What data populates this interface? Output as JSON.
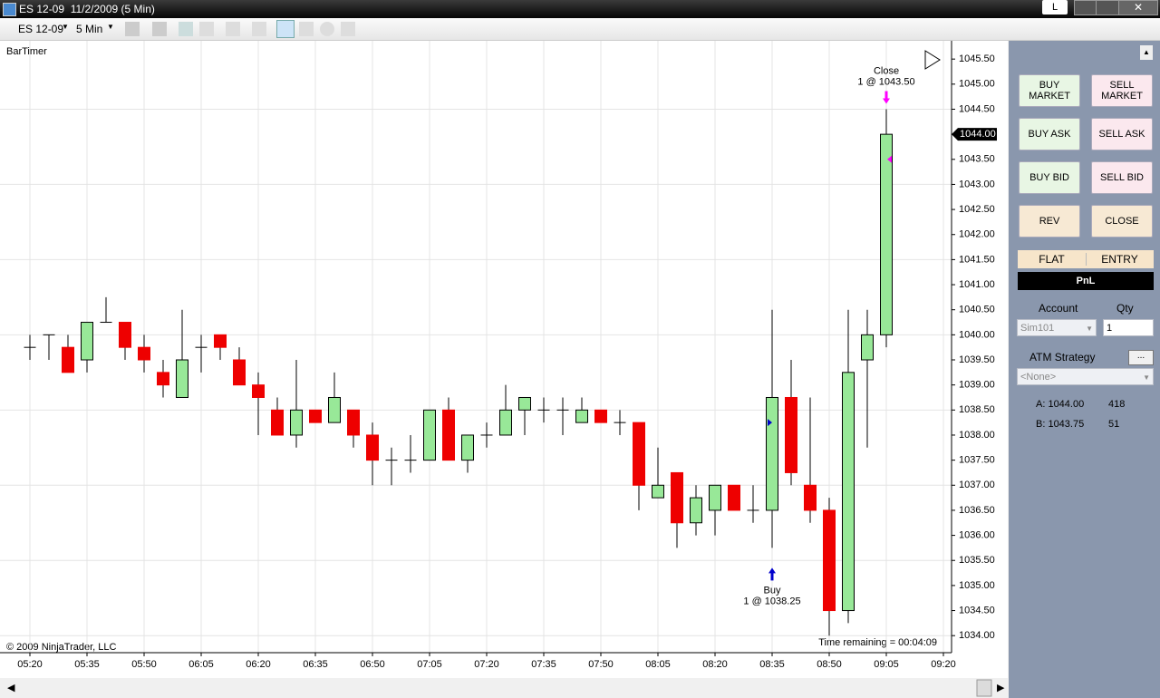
{
  "window": {
    "title": "ES 12-09  11/2/2009 (5 Min)",
    "user_button": "L"
  },
  "toolbar": {
    "instrument": "ES 12-09",
    "interval": "5 Min"
  },
  "chart_data": {
    "type": "candlestick",
    "indicator": "BarTimer",
    "copyright": "© 2009 NinjaTrader, LLC",
    "timer": "Time remaining = 00:04:09",
    "xticks": [
      "05:20",
      "05:35",
      "05:50",
      "06:05",
      "06:20",
      "06:35",
      "06:50",
      "07:05",
      "07:20",
      "07:35",
      "07:50",
      "08:05",
      "08:20",
      "08:35",
      "08:50",
      "09:05",
      "09:20"
    ],
    "ylim": [
      1033.66,
      1045.72
    ],
    "yticks": [
      {
        "value": 1045.5,
        "label": "1045.50"
      },
      {
        "value": 1045,
        "label": "1045.00"
      },
      {
        "value": 1044.5,
        "label": "1044.50"
      },
      {
        "value": 1044,
        "label": "1044.00"
      },
      {
        "value": 1043.5,
        "label": "1043.50"
      },
      {
        "value": 1043,
        "label": "1043.00"
      },
      {
        "value": 1042.5,
        "label": "1042.50"
      },
      {
        "value": 1042,
        "label": "1042.00"
      },
      {
        "value": 1041.5,
        "label": "1041.50"
      },
      {
        "value": 1041,
        "label": "1041.00"
      },
      {
        "value": 1040.5,
        "label": "1040.50"
      },
      {
        "value": 1040,
        "label": "1040.00"
      },
      {
        "value": 1039.5,
        "label": "1039.50"
      },
      {
        "value": 1039,
        "label": "1039.00"
      },
      {
        "value": 1038.5,
        "label": "1038.50"
      },
      {
        "value": 1038,
        "label": "1038.00"
      },
      {
        "value": 1037.5,
        "label": "1037.50"
      },
      {
        "value": 1037,
        "label": "1037.00"
      },
      {
        "value": 1036.5,
        "label": "1036.50"
      },
      {
        "value": 1036,
        "label": "1036.00"
      },
      {
        "value": 1035.5,
        "label": "1035.50"
      },
      {
        "value": 1035,
        "label": "1035.00"
      },
      {
        "value": 1034.5,
        "label": "1034.50"
      },
      {
        "value": 1034,
        "label": "1034.00"
      }
    ],
    "grid": true,
    "up_color": "#98e898",
    "down_color": "#ee0000",
    "open": [
      1039.75,
      1040,
      1039.75,
      1039.5,
      1040.25,
      1040.25,
      1039.75,
      1039.25,
      1038.75,
      1039.75,
      1040,
      1039.5,
      1039,
      1038.5,
      1038,
      1038.5,
      1038.25,
      1038.5,
      1038,
      1037.5,
      1037.5,
      1037.5,
      1038.5,
      1037.5,
      1038,
      1038,
      1038.5,
      1038.5,
      1038.5,
      1038.25,
      1038.5,
      1038.25,
      1038.25,
      1036.75,
      1037.25,
      1036.25,
      1036.5,
      1037,
      1036.5,
      1036.5,
      1038.75,
      1037,
      1036.5,
      1034.5,
      1039.5,
      1040
    ],
    "high": [
      1040,
      1040,
      1040,
      1040.25,
      1040.75,
      1040.25,
      1040,
      1039.5,
      1040.5,
      1040,
      1040,
      1039.75,
      1039.25,
      1038.75,
      1039.5,
      1038.5,
      1039.25,
      1038.5,
      1038.25,
      1037.75,
      1038,
      1038.5,
      1038.75,
      1038,
      1038.25,
      1039,
      1038.75,
      1038.75,
      1038.75,
      1038.75,
      1038.5,
      1038.5,
      1038.25,
      1037.75,
      1037.25,
      1037,
      1037,
      1037,
      1037,
      1040.5,
      1039.5,
      1038.75,
      1036.75,
      1040.5,
      1040.5,
      1044.5
    ],
    "low": [
      1039.5,
      1039.5,
      1039.25,
      1039.25,
      1040.25,
      1039.5,
      1039.25,
      1038.75,
      1038.75,
      1039.25,
      1039.5,
      1039,
      1038,
      1038,
      1037.75,
      1038.25,
      1038.25,
      1037.75,
      1037,
      1037,
      1037.25,
      1037.5,
      1037.5,
      1037.25,
      1037.75,
      1038,
      1038,
      1038.25,
      1038,
      1038.25,
      1038.25,
      1038,
      1036.5,
      1036.75,
      1035.75,
      1036,
      1036,
      1036.5,
      1036.25,
      1035.75,
      1037,
      1036.25,
      1034,
      1034.25,
      1037.75,
      1039.75
    ],
    "close": [
      1039.75,
      1040,
      1039.25,
      1040.25,
      1040.25,
      1039.75,
      1039.5,
      1039,
      1039.5,
      1039.75,
      1039.75,
      1039,
      1038.75,
      1038,
      1038.5,
      1038.25,
      1038.75,
      1038,
      1037.5,
      1037.5,
      1037.5,
      1038.5,
      1037.5,
      1038,
      1038,
      1038.5,
      1038.75,
      1038.5,
      1038.5,
      1038.5,
      1038.25,
      1038.25,
      1037,
      1037,
      1036.25,
      1036.75,
      1037,
      1036.5,
      1036.5,
      1038.75,
      1037.25,
      1036.5,
      1034.5,
      1039.25,
      1040,
      1044
    ],
    "last_price": {
      "value": 1044,
      "label": "1044.00"
    },
    "trades": [
      {
        "action": "Buy",
        "detail": "1 @ 1038.25",
        "price": 1038.25,
        "time": "08:35",
        "color": "#0000cc"
      },
      {
        "action": "Close",
        "detail": "1 @ 1043.50",
        "price": 1043.5,
        "time": "09:05",
        "color": "#ff00ff"
      }
    ]
  },
  "panel": {
    "buttons": [
      "BUY MARKET",
      "SELL MARKET",
      "BUY ASK",
      "SELL ASK",
      "BUY BID",
      "SELL BID",
      "REV",
      "CLOSE"
    ],
    "position": "FLAT",
    "strategy_state": "ENTRY",
    "pnl_label": "PnL",
    "account_label": "Account",
    "qty_label": "Qty",
    "account": "Sim101",
    "qty": 1,
    "atm_label": "ATM Strategy",
    "atm_button": "...",
    "atm": "<None>",
    "ask": {
      "label": "A: 1044.00",
      "size": 418
    },
    "bid": {
      "label": "B: 1043.75",
      "size": 51
    }
  }
}
